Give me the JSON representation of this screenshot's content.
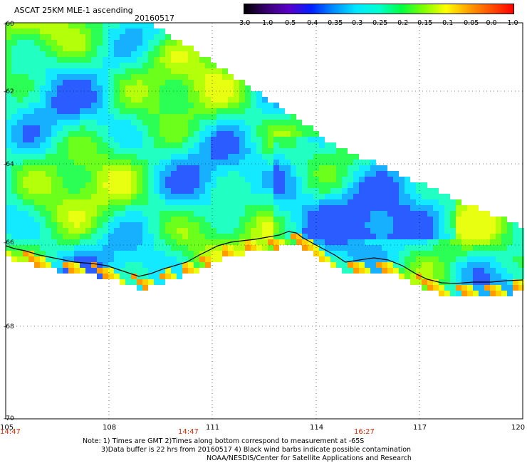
{
  "header": {
    "title": "ASCAT 25KM MLE-1 ascending",
    "date": "20160517"
  },
  "colorbar": {
    "ticks": [
      "-3.0",
      "-1.0",
      "-0.5",
      "-0.4",
      "-0.35",
      "-0.3",
      "-0.25",
      "-0.2",
      "-0.15",
      "-0.1",
      "-0.05",
      "0.0",
      "1.0"
    ],
    "gradient_colors": [
      "#000000",
      "#3a0070",
      "#5a00c8",
      "#0020ff",
      "#0090ff",
      "#00e8ff",
      "#00ffd0",
      "#00ff40",
      "#80ff00",
      "#ffff00",
      "#ffa000",
      "#ff5000",
      "#ff0000"
    ]
  },
  "axes": {
    "lat_labels": [
      "-60",
      "-62",
      "-64",
      "-66",
      "-68",
      "-70"
    ],
    "lon_labels": [
      "105",
      "108",
      "111",
      "114",
      "117",
      "120"
    ],
    "time_labels": [
      "14:47",
      "14:47",
      "16:27"
    ]
  },
  "notes": {
    "line1": "Note: 1) Times are GMT 2)Times along bottom correspond to measurement at -65S",
    "line2": "3)Data buffer is 22 hrs from 20160517 4) Black wind barbs indicate possible contamination",
    "line3": "NOAA/NESDIS/Center for Satellite Applications and Research"
  }
}
